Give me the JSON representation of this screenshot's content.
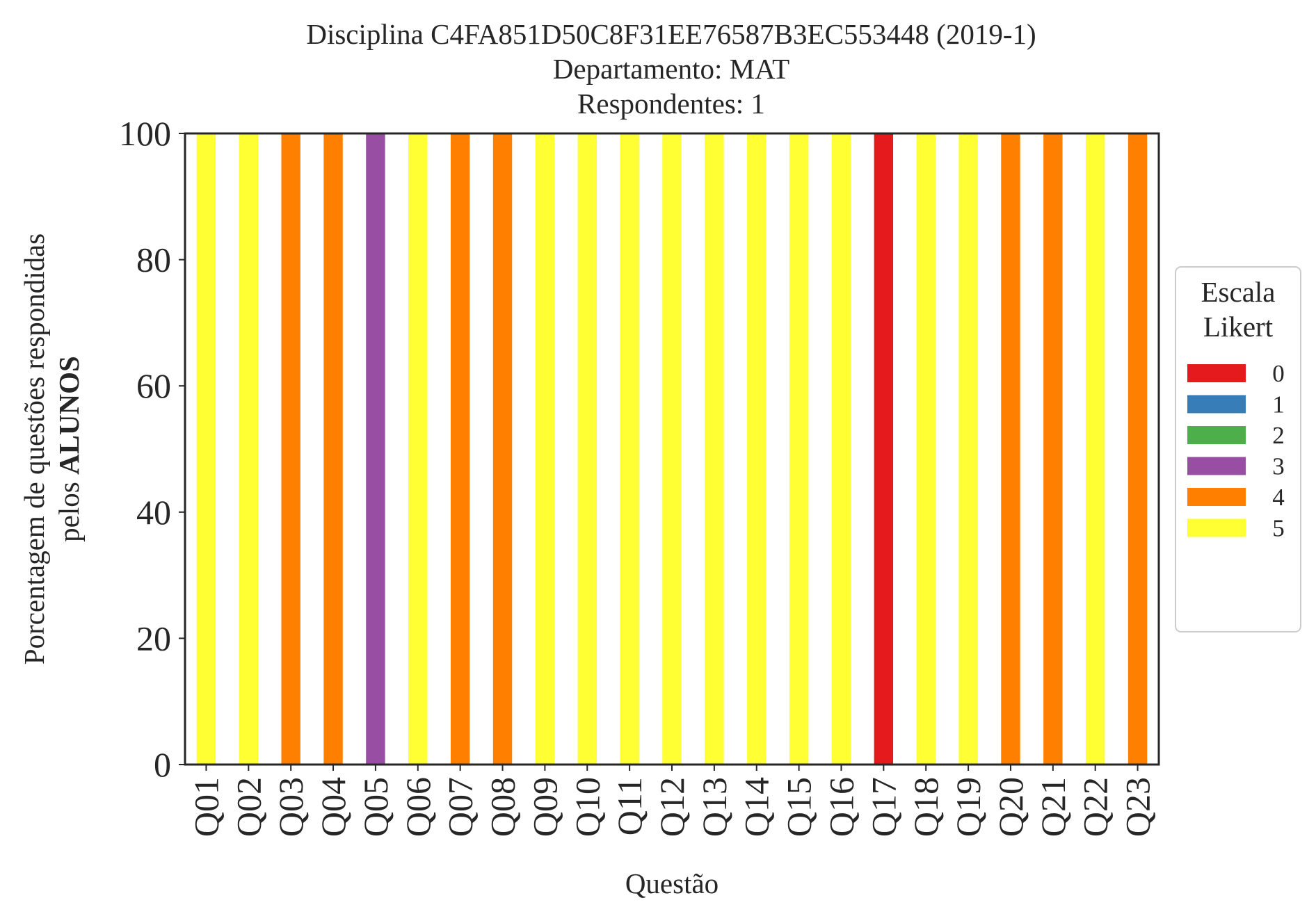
{
  "chart_data": {
    "type": "bar",
    "stacked": true,
    "title_lines": [
      "Disciplina C4FA851D50C8F31EE76587B3EC553448 (2019-1)",
      "Departamento: MAT",
      "Respondentes: 1"
    ],
    "xlabel": "Questão",
    "ylabel_line1": "Porcentagem de questões respondidas",
    "ylabel_line2_prefix": "pelos ",
    "ylabel_line2_bold": "ALUNOS",
    "ylim": [
      0,
      100
    ],
    "yticks": [
      "0",
      "20",
      "40",
      "60",
      "80",
      "100"
    ],
    "grid": false,
    "categories": [
      "Q01",
      "Q02",
      "Q03",
      "Q04",
      "Q05",
      "Q06",
      "Q07",
      "Q08",
      "Q09",
      "Q10",
      "Q11",
      "Q12",
      "Q13",
      "Q14",
      "Q15",
      "Q16",
      "Q17",
      "Q18",
      "Q19",
      "Q20",
      "Q21",
      "Q22",
      "Q23"
    ],
    "legend": {
      "title_lines": [
        "Escala",
        "Likert"
      ],
      "placement": "center-right outside"
    },
    "series": [
      {
        "name": "0",
        "color": "#e41a1c",
        "values": [
          0,
          0,
          0,
          0,
          0,
          0,
          0,
          0,
          0,
          0,
          0,
          0,
          0,
          0,
          0,
          0,
          100,
          0,
          0,
          0,
          0,
          0,
          0
        ]
      },
      {
        "name": "1",
        "color": "#377eb8",
        "values": [
          0,
          0,
          0,
          0,
          0,
          0,
          0,
          0,
          0,
          0,
          0,
          0,
          0,
          0,
          0,
          0,
          0,
          0,
          0,
          0,
          0,
          0,
          0
        ]
      },
      {
        "name": "2",
        "color": "#4daf4a",
        "values": [
          0,
          0,
          0,
          0,
          0,
          0,
          0,
          0,
          0,
          0,
          0,
          0,
          0,
          0,
          0,
          0,
          0,
          0,
          0,
          0,
          0,
          0,
          0
        ]
      },
      {
        "name": "3",
        "color": "#984ea3",
        "values": [
          0,
          0,
          0,
          0,
          100,
          0,
          0,
          0,
          0,
          0,
          0,
          0,
          0,
          0,
          0,
          0,
          0,
          0,
          0,
          0,
          0,
          0,
          0
        ]
      },
      {
        "name": "4",
        "color": "#ff7f00",
        "values": [
          0,
          0,
          100,
          100,
          0,
          0,
          100,
          100,
          0,
          0,
          0,
          0,
          0,
          0,
          0,
          0,
          0,
          0,
          0,
          100,
          100,
          0,
          100
        ]
      },
      {
        "name": "5",
        "color": "#ffff33",
        "values": [
          100,
          100,
          0,
          0,
          0,
          100,
          0,
          0,
          100,
          100,
          100,
          100,
          100,
          100,
          100,
          100,
          0,
          100,
          100,
          0,
          0,
          100,
          0
        ]
      }
    ]
  }
}
